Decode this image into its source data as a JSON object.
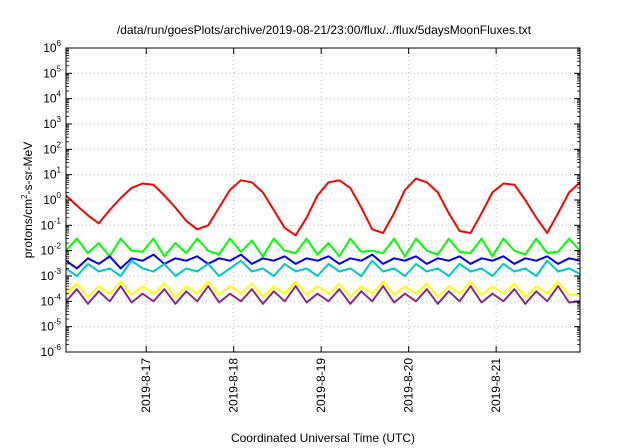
{
  "chart_data": {
    "type": "line",
    "title": "/data/run/goesPlots/archive/2019-08-21/23:00/flux/../flux/5daysMoonFluxes.txt",
    "xlabel": "Coordinated Universal Time (UTC)",
    "ylabel": "protons/cm²-s-sr-MeV",
    "ylabel_parts": [
      "protons/cm",
      "2",
      "-s-sr-MeV"
    ],
    "x_scale": "date",
    "xlim": [
      "2019-08-16T02:00",
      "2019-08-21T23:00"
    ],
    "y_scale": "log",
    "ylim": [
      1e-06,
      1000000.0
    ],
    "grid": true,
    "legend": "none",
    "x_ticks": [
      {
        "label": "2019-8-17",
        "x": "2019-08-17T00:00"
      },
      {
        "label": "2019-8-18",
        "x": "2019-08-18T00:00"
      },
      {
        "label": "2019-8-19",
        "x": "2019-08-19T00:00"
      },
      {
        "label": "2019-8-20",
        "x": "2019-08-20T00:00"
      },
      {
        "label": "2019-8-21",
        "x": "2019-08-21T00:00"
      }
    ],
    "y_ticks": [
      {
        "base": "10",
        "exp": "-6",
        "value": 1e-06
      },
      {
        "base": "10",
        "exp": "-5",
        "value": 1e-05
      },
      {
        "base": "10",
        "exp": "-4",
        "value": 0.0001
      },
      {
        "base": "10",
        "exp": "-3",
        "value": 0.001
      },
      {
        "base": "10",
        "exp": "-2",
        "value": 0.01
      },
      {
        "base": "10",
        "exp": "-1",
        "value": 0.1
      },
      {
        "base": "10",
        "exp": "0",
        "value": 1
      },
      {
        "base": "10",
        "exp": "1",
        "value": 10
      },
      {
        "base": "10",
        "exp": "2",
        "value": 100
      },
      {
        "base": "10",
        "exp": "3",
        "value": 1000
      },
      {
        "base": "10",
        "exp": "4",
        "value": 10000
      },
      {
        "base": "10",
        "exp": "5",
        "value": 100000
      },
      {
        "base": "10",
        "exp": "6",
        "value": 1000000
      }
    ],
    "series": [
      {
        "color": "#ff0000",
        "x": [
          "2019-08-16T02:00",
          "2019-08-16T05:00",
          "2019-08-16T08:00",
          "2019-08-16T11:00",
          "2019-08-16T14:00",
          "2019-08-16T17:00",
          "2019-08-16T20:00",
          "2019-08-16T23:00",
          "2019-08-17T02:00",
          "2019-08-17T05:00",
          "2019-08-17T08:00",
          "2019-08-17T11:00",
          "2019-08-17T14:00",
          "2019-08-17T17:00",
          "2019-08-17T20:00",
          "2019-08-17T23:00",
          "2019-08-18T02:00",
          "2019-08-18T05:00",
          "2019-08-18T08:00",
          "2019-08-18T11:00",
          "2019-08-18T14:00",
          "2019-08-18T17:00",
          "2019-08-18T20:00",
          "2019-08-18T23:00",
          "2019-08-19T02:00",
          "2019-08-19T05:00",
          "2019-08-19T08:00",
          "2019-08-19T11:00",
          "2019-08-19T14:00",
          "2019-08-19T17:00",
          "2019-08-19T20:00",
          "2019-08-19T23:00",
          "2019-08-20T02:00",
          "2019-08-20T05:00",
          "2019-08-20T08:00",
          "2019-08-20T11:00",
          "2019-08-20T14:00",
          "2019-08-20T17:00",
          "2019-08-20T20:00",
          "2019-08-20T23:00",
          "2019-08-21T02:00",
          "2019-08-21T05:00",
          "2019-08-21T08:00",
          "2019-08-21T11:00",
          "2019-08-21T14:00",
          "2019-08-21T17:00",
          "2019-08-21T20:00",
          "2019-08-21T23:00"
        ],
        "y": [
          1.5,
          0.6,
          0.25,
          0.12,
          0.4,
          1.2,
          3.0,
          4.5,
          4.0,
          1.5,
          0.5,
          0.15,
          0.07,
          0.1,
          0.5,
          2.5,
          6.0,
          5.0,
          2.0,
          0.4,
          0.08,
          0.04,
          0.2,
          1.5,
          5.0,
          6.0,
          3.0,
          0.5,
          0.07,
          0.05,
          0.3,
          2.5,
          7.0,
          5.0,
          2.0,
          0.3,
          0.06,
          0.05,
          0.3,
          2.0,
          4.5,
          4.0,
          1.0,
          0.2,
          0.05,
          0.3,
          2.0,
          5.0
        ]
      },
      {
        "color": "#00ff00",
        "x": [
          "2019-08-16T02:00",
          "2019-08-16T05:00",
          "2019-08-16T08:00",
          "2019-08-16T11:00",
          "2019-08-16T14:00",
          "2019-08-16T17:00",
          "2019-08-16T20:00",
          "2019-08-16T23:00",
          "2019-08-17T02:00",
          "2019-08-17T05:00",
          "2019-08-17T08:00",
          "2019-08-17T11:00",
          "2019-08-17T14:00",
          "2019-08-17T17:00",
          "2019-08-17T20:00",
          "2019-08-17T23:00",
          "2019-08-18T02:00",
          "2019-08-18T05:00",
          "2019-08-18T08:00",
          "2019-08-18T11:00",
          "2019-08-18T14:00",
          "2019-08-18T17:00",
          "2019-08-18T20:00",
          "2019-08-18T23:00",
          "2019-08-19T02:00",
          "2019-08-19T05:00",
          "2019-08-19T08:00",
          "2019-08-19T11:00",
          "2019-08-19T14:00",
          "2019-08-19T17:00",
          "2019-08-19T20:00",
          "2019-08-19T23:00",
          "2019-08-20T02:00",
          "2019-08-20T05:00",
          "2019-08-20T08:00",
          "2019-08-20T11:00",
          "2019-08-20T14:00",
          "2019-08-20T17:00",
          "2019-08-20T20:00",
          "2019-08-20T23:00",
          "2019-08-21T02:00",
          "2019-08-21T05:00",
          "2019-08-21T08:00",
          "2019-08-21T11:00",
          "2019-08-21T14:00",
          "2019-08-21T17:00",
          "2019-08-21T20:00",
          "2019-08-21T23:00"
        ],
        "y": [
          0.01,
          0.03,
          0.008,
          0.02,
          0.006,
          0.03,
          0.01,
          0.009,
          0.03,
          0.006,
          0.02,
          0.008,
          0.03,
          0.01,
          0.007,
          0.03,
          0.009,
          0.025,
          0.006,
          0.03,
          0.01,
          0.008,
          0.03,
          0.007,
          0.02,
          0.006,
          0.03,
          0.009,
          0.01,
          0.008,
          0.03,
          0.006,
          0.03,
          0.01,
          0.007,
          0.03,
          0.009,
          0.008,
          0.03,
          0.006,
          0.03,
          0.01,
          0.007,
          0.03,
          0.008,
          0.009,
          0.03,
          0.01
        ]
      },
      {
        "color": "#0000ff",
        "x": [
          "2019-08-16T02:00",
          "2019-08-16T05:00",
          "2019-08-16T08:00",
          "2019-08-16T11:00",
          "2019-08-16T14:00",
          "2019-08-16T17:00",
          "2019-08-16T20:00",
          "2019-08-16T23:00",
          "2019-08-17T02:00",
          "2019-08-17T05:00",
          "2019-08-17T08:00",
          "2019-08-17T11:00",
          "2019-08-17T14:00",
          "2019-08-17T17:00",
          "2019-08-17T20:00",
          "2019-08-17T23:00",
          "2019-08-18T02:00",
          "2019-08-18T05:00",
          "2019-08-18T08:00",
          "2019-08-18T11:00",
          "2019-08-18T14:00",
          "2019-08-18T17:00",
          "2019-08-18T20:00",
          "2019-08-18T23:00",
          "2019-08-19T02:00",
          "2019-08-19T05:00",
          "2019-08-19T08:00",
          "2019-08-19T11:00",
          "2019-08-19T14:00",
          "2019-08-19T17:00",
          "2019-08-19T20:00",
          "2019-08-19T23:00",
          "2019-08-20T02:00",
          "2019-08-20T05:00",
          "2019-08-20T08:00",
          "2019-08-20T11:00",
          "2019-08-20T14:00",
          "2019-08-20T17:00",
          "2019-08-20T20:00",
          "2019-08-20T23:00",
          "2019-08-21T02:00",
          "2019-08-21T05:00",
          "2019-08-21T08:00",
          "2019-08-21T11:00",
          "2019-08-21T14:00",
          "2019-08-21T17:00",
          "2019-08-21T20:00",
          "2019-08-21T23:00"
        ],
        "y": [
          0.004,
          0.002,
          0.005,
          0.003,
          0.006,
          0.002,
          0.005,
          0.004,
          0.007,
          0.003,
          0.005,
          0.004,
          0.006,
          0.003,
          0.005,
          0.004,
          0.007,
          0.003,
          0.005,
          0.004,
          0.006,
          0.003,
          0.005,
          0.004,
          0.006,
          0.003,
          0.005,
          0.004,
          0.007,
          0.003,
          0.005,
          0.004,
          0.006,
          0.003,
          0.005,
          0.004,
          0.006,
          0.003,
          0.005,
          0.004,
          0.006,
          0.003,
          0.005,
          0.004,
          0.006,
          0.003,
          0.005,
          0.004
        ]
      },
      {
        "color": "#00c8c8",
        "x": [
          "2019-08-16T02:00",
          "2019-08-16T05:00",
          "2019-08-16T08:00",
          "2019-08-16T11:00",
          "2019-08-16T14:00",
          "2019-08-16T17:00",
          "2019-08-16T20:00",
          "2019-08-16T23:00",
          "2019-08-17T02:00",
          "2019-08-17T05:00",
          "2019-08-17T08:00",
          "2019-08-17T11:00",
          "2019-08-17T14:00",
          "2019-08-17T17:00",
          "2019-08-17T20:00",
          "2019-08-17T23:00",
          "2019-08-18T02:00",
          "2019-08-18T05:00",
          "2019-08-18T08:00",
          "2019-08-18T11:00",
          "2019-08-18T14:00",
          "2019-08-18T17:00",
          "2019-08-18T20:00",
          "2019-08-18T23:00",
          "2019-08-19T02:00",
          "2019-08-19T05:00",
          "2019-08-19T08:00",
          "2019-08-19T11:00",
          "2019-08-19T14:00",
          "2019-08-19T17:00",
          "2019-08-19T20:00",
          "2019-08-19T23:00",
          "2019-08-20T02:00",
          "2019-08-20T05:00",
          "2019-08-20T08:00",
          "2019-08-20T11:00",
          "2019-08-20T14:00",
          "2019-08-20T17:00",
          "2019-08-20T20:00",
          "2019-08-20T23:00",
          "2019-08-21T02:00",
          "2019-08-21T05:00",
          "2019-08-21T08:00",
          "2019-08-21T11:00",
          "2019-08-21T14:00",
          "2019-08-21T17:00",
          "2019-08-21T20:00",
          "2019-08-21T23:00"
        ],
        "y": [
          0.002,
          0.001,
          0.003,
          0.0015,
          0.002,
          0.001,
          0.004,
          0.002,
          0.0015,
          0.003,
          0.001,
          0.002,
          0.0015,
          0.003,
          0.001,
          0.002,
          0.004,
          0.0015,
          0.002,
          0.001,
          0.003,
          0.0015,
          0.002,
          0.001,
          0.003,
          0.0015,
          0.002,
          0.001,
          0.004,
          0.0015,
          0.002,
          0.001,
          0.003,
          0.0015,
          0.002,
          0.001,
          0.003,
          0.0015,
          0.002,
          0.001,
          0.003,
          0.0015,
          0.002,
          0.001,
          0.004,
          0.0015,
          0.002,
          0.0012
        ]
      },
      {
        "color": "#ffff00",
        "x": [
          "2019-08-16T02:00",
          "2019-08-16T05:00",
          "2019-08-16T08:00",
          "2019-08-16T11:00",
          "2019-08-16T14:00",
          "2019-08-16T17:00",
          "2019-08-16T20:00",
          "2019-08-16T23:00",
          "2019-08-17T02:00",
          "2019-08-17T05:00",
          "2019-08-17T08:00",
          "2019-08-17T11:00",
          "2019-08-17T14:00",
          "2019-08-17T17:00",
          "2019-08-17T20:00",
          "2019-08-17T23:00",
          "2019-08-18T02:00",
          "2019-08-18T05:00",
          "2019-08-18T08:00",
          "2019-08-18T11:00",
          "2019-08-18T14:00",
          "2019-08-18T17:00",
          "2019-08-18T20:00",
          "2019-08-18T23:00",
          "2019-08-19T02:00",
          "2019-08-19T05:00",
          "2019-08-19T08:00",
          "2019-08-19T11:00",
          "2019-08-19T14:00",
          "2019-08-19T17:00",
          "2019-08-19T20:00",
          "2019-08-19T23:00",
          "2019-08-20T02:00",
          "2019-08-20T05:00",
          "2019-08-20T08:00",
          "2019-08-20T11:00",
          "2019-08-20T14:00",
          "2019-08-20T17:00",
          "2019-08-20T20:00",
          "2019-08-20T23:00",
          "2019-08-21T02:00",
          "2019-08-21T05:00",
          "2019-08-21T08:00",
          "2019-08-21T11:00",
          "2019-08-21T14:00",
          "2019-08-21T17:00",
          "2019-08-21T20:00",
          "2019-08-21T23:00"
        ],
        "y": [
          0.0002,
          0.0005,
          0.00015,
          0.0004,
          0.0002,
          0.0006,
          0.00018,
          0.0004,
          0.0002,
          0.0005,
          0.00015,
          0.0004,
          0.0002,
          0.0006,
          0.00018,
          0.0004,
          0.0002,
          0.0005,
          0.00015,
          0.0004,
          0.0002,
          0.0006,
          0.00018,
          0.0004,
          0.0002,
          0.0005,
          0.00015,
          0.0004,
          0.0002,
          0.0006,
          0.00018,
          0.0004,
          0.0002,
          0.0005,
          0.00015,
          0.0004,
          0.0002,
          0.0006,
          0.00018,
          0.0004,
          0.0002,
          0.0005,
          0.00015,
          0.0004,
          0.0002,
          0.0006,
          0.00018,
          0.0002
        ]
      },
      {
        "color": "#8b2b7a",
        "x": [
          "2019-08-16T02:00",
          "2019-08-16T05:00",
          "2019-08-16T08:00",
          "2019-08-16T11:00",
          "2019-08-16T14:00",
          "2019-08-16T17:00",
          "2019-08-16T20:00",
          "2019-08-16T23:00",
          "2019-08-17T02:00",
          "2019-08-17T05:00",
          "2019-08-17T08:00",
          "2019-08-17T11:00",
          "2019-08-17T14:00",
          "2019-08-17T17:00",
          "2019-08-17T20:00",
          "2019-08-17T23:00",
          "2019-08-18T02:00",
          "2019-08-18T05:00",
          "2019-08-18T08:00",
          "2019-08-18T11:00",
          "2019-08-18T14:00",
          "2019-08-18T17:00",
          "2019-08-18T20:00",
          "2019-08-18T23:00",
          "2019-08-19T02:00",
          "2019-08-19T05:00",
          "2019-08-19T08:00",
          "2019-08-19T11:00",
          "2019-08-19T14:00",
          "2019-08-19T17:00",
          "2019-08-19T20:00",
          "2019-08-19T23:00",
          "2019-08-20T02:00",
          "2019-08-20T05:00",
          "2019-08-20T08:00",
          "2019-08-20T11:00",
          "2019-08-20T14:00",
          "2019-08-20T17:00",
          "2019-08-20T20:00",
          "2019-08-20T23:00",
          "2019-08-21T02:00",
          "2019-08-21T05:00",
          "2019-08-21T08:00",
          "2019-08-21T11:00",
          "2019-08-21T14:00",
          "2019-08-21T17:00",
          "2019-08-21T20:00",
          "2019-08-21T23:00"
        ],
        "y": [
          0.0001,
          0.0003,
          8e-05,
          0.00025,
          0.0001,
          0.0004,
          9e-05,
          0.0002,
          0.0001,
          0.0003,
          8e-05,
          0.00025,
          0.0001,
          0.0004,
          9e-05,
          0.0002,
          0.0001,
          0.0003,
          8e-05,
          0.00025,
          0.0001,
          0.0004,
          9e-05,
          0.0002,
          0.0001,
          0.0003,
          8e-05,
          0.00025,
          0.0001,
          0.0004,
          9e-05,
          0.0002,
          0.0001,
          0.0003,
          8e-05,
          0.00025,
          0.0001,
          0.0004,
          9e-05,
          0.0002,
          0.0001,
          0.0003,
          8e-05,
          0.00025,
          0.0001,
          0.0004,
          9e-05,
          0.0001
        ]
      }
    ]
  }
}
